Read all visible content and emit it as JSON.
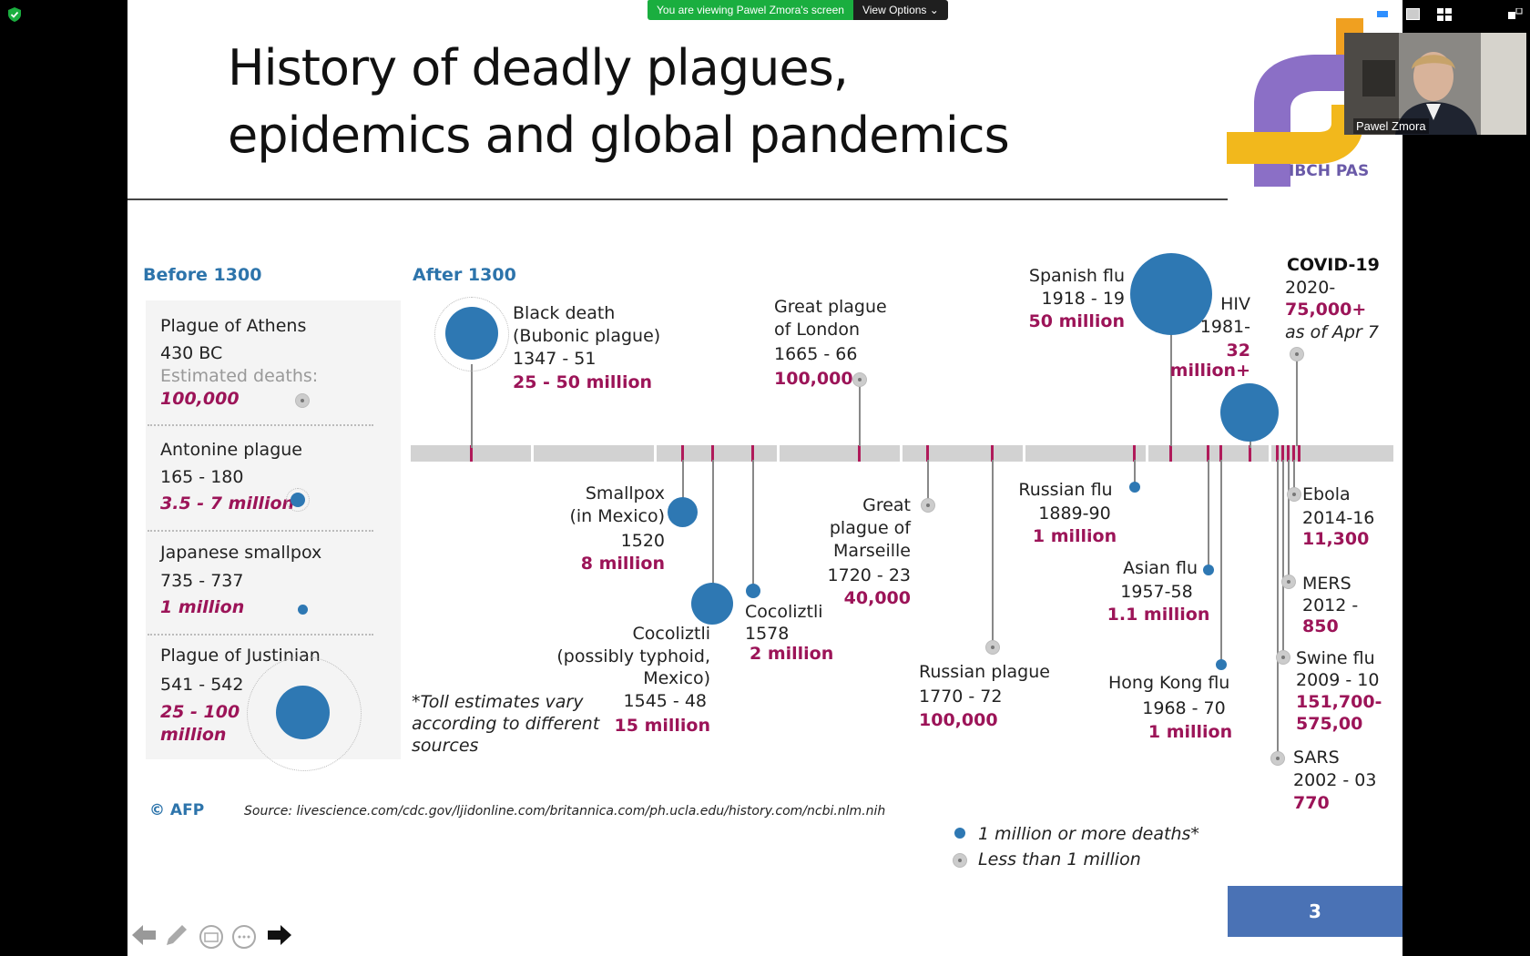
{
  "banner": {
    "viewing": "You are viewing Pawel Zmora's screen",
    "options": "View Options"
  },
  "slide": {
    "title_line1": "History of deadly plagues,",
    "title_line2": "epidemics and global pandemics",
    "logo": {
      "text": "IBCH PAS"
    },
    "before_header": "Before 1300",
    "after_header": "After 1300",
    "before": [
      {
        "name": "Plague of Athens",
        "years": "430 BC",
        "label": "Estimated deaths:",
        "deaths": "100,000"
      },
      {
        "name": "Antonine plague",
        "years": "165 - 180",
        "deaths": "3.5 - 7 million"
      },
      {
        "name": "Japanese smallpox",
        "years": "735 - 737",
        "deaths": "1 million"
      },
      {
        "name": "Plague of Justinian",
        "years": "541 - 542",
        "deaths_l1": "25 - 100",
        "deaths_l2": "million"
      }
    ],
    "events": {
      "black_death": {
        "l1": "Black death",
        "l2": "(Bubonic plague)",
        "years": "1347 - 51",
        "deaths": "25 - 50 million"
      },
      "london": {
        "l1": "Great plague",
        "l2": "of London",
        "years": "1665 - 66",
        "deaths": "100,000"
      },
      "spanish": {
        "name": "Spanish flu",
        "years": "1918 - 19",
        "deaths": "50 million"
      },
      "hiv": {
        "name": "HIV",
        "years": "1981-",
        "d1": "32",
        "d2": "million+"
      },
      "covid": {
        "name": "COVID-19",
        "years": "2020-",
        "deaths": "75,000+",
        "note": "as of Apr 7"
      },
      "smallpox": {
        "l1": "Smallpox",
        "l2": "(in Mexico)",
        "years": "1520",
        "deaths": "8 million"
      },
      "cocoliztli1": {
        "name": "Cocoliztli",
        "l2": "(possibly typhoid,",
        "l3": "Mexico)",
        "years": "1545 - 48",
        "deaths": "15 million"
      },
      "cocoliztli2": {
        "name": "Cocoliztli",
        "years": "1578",
        "deaths": "2 million"
      },
      "marseille": {
        "l1": "Great",
        "l2": "plague of",
        "l3": "Marseille",
        "years": "1720 - 23",
        "deaths": "40,000"
      },
      "russian_plague": {
        "name": "Russian plague",
        "years": "1770 - 72",
        "deaths": "100,000"
      },
      "russian_flu": {
        "name": "Russian flu",
        "years": "1889-90",
        "deaths": "1 million"
      },
      "asian_flu": {
        "name": "Asian flu",
        "years": "1957-58",
        "deaths": "1.1 million"
      },
      "hk_flu": {
        "name": "Hong Kong flu",
        "years": "1968 - 70",
        "deaths": "1 million"
      },
      "ebola": {
        "name": "Ebola",
        "years": "2014-16",
        "deaths": "11,300"
      },
      "mers": {
        "name": "MERS",
        "years": "2012 -",
        "deaths": "850"
      },
      "swine": {
        "name": "Swine flu",
        "years": "2009 - 10",
        "d1": "151,700-",
        "d2": "575,00"
      },
      "sars": {
        "name": "SARS",
        "years": "2002 - 03",
        "deaths": "770"
      }
    },
    "toll_note": [
      "*Toll estimates vary",
      "according to different",
      "sources"
    ],
    "copyright": "© AFP",
    "source": "Source: livescience.com/cdc.gov/ljidonline.com/britannica.com/ph.ucla.edu/history.com/ncbi.nlm.nih",
    "legend": {
      "big": "1 million or more deaths*",
      "small": "Less than 1 million"
    },
    "page_number": "3"
  },
  "video": {
    "name": "Pawel Zmora"
  },
  "colors": {
    "accent_blue": "#2e78b3",
    "magenta": "#9c1458",
    "banner_green": "#1aae3f",
    "page_blue": "#4a72b5"
  }
}
